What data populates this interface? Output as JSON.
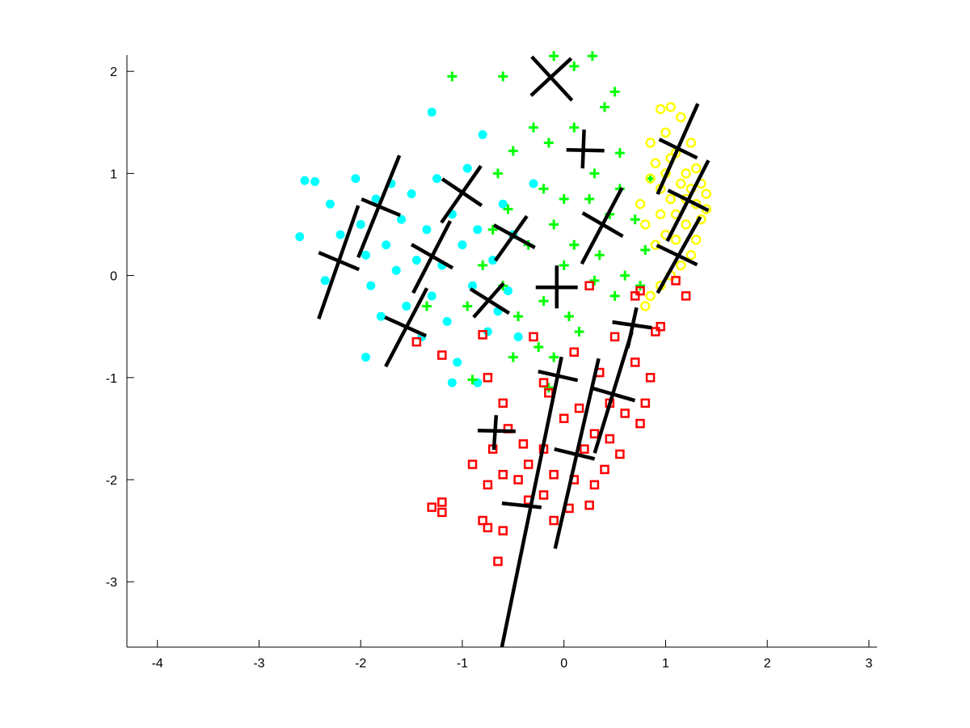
{
  "chart_data": {
    "type": "scatter",
    "xlim": [
      -4.3,
      3.08
    ],
    "ylim": [
      -3.64,
      2.16
    ],
    "xticks": [
      -4,
      -3,
      -2,
      -1,
      0,
      1,
      2,
      3
    ],
    "yticks": [
      -3,
      -2,
      -1,
      0,
      1,
      2
    ],
    "series": [
      {
        "color": "#00ffff",
        "marker": "filled-circle",
        "x": [
          -2.6,
          -2.55,
          -2.45,
          -2.3,
          -2.2,
          -2.05,
          -2.0,
          -1.95,
          -1.9,
          -1.85,
          -1.8,
          -1.75,
          -1.7,
          -1.65,
          -1.6,
          -1.55,
          -1.5,
          -1.45,
          -1.4,
          -1.35,
          -1.3,
          -1.3,
          -1.25,
          -1.2,
          -1.15,
          -1.1,
          -1.05,
          -1.0,
          -0.95,
          -0.9,
          -0.85,
          -0.8,
          -0.75,
          -0.7,
          -0.65,
          -0.6,
          -0.55,
          -0.5,
          -0.45,
          -0.3,
          -1.95,
          -2.35,
          -1.1,
          -0.85
        ],
        "y": [
          0.38,
          0.93,
          0.92,
          0.7,
          0.4,
          0.95,
          0.5,
          0.2,
          -0.1,
          0.75,
          -0.4,
          0.3,
          0.9,
          0.05,
          0.55,
          -0.3,
          0.8,
          0.15,
          -0.6,
          0.45,
          -0.2,
          1.6,
          0.95,
          0.1,
          -0.45,
          0.6,
          -0.85,
          0.3,
          1.05,
          -0.1,
          0.45,
          1.38,
          -0.55,
          0.15,
          -0.35,
          0.7,
          -0.15,
          0.4,
          -0.6,
          0.9,
          -0.8,
          -0.05,
          -1.05,
          -1.05
        ]
      },
      {
        "color": "#00ff00",
        "marker": "plus",
        "x": [
          -1.1,
          -0.6,
          -0.65,
          -0.5,
          -0.3,
          -0.1,
          0.1,
          0.28,
          0.4,
          0.5,
          -0.15,
          0.1,
          0.3,
          0.55,
          0.55,
          -0.2,
          0.0,
          0.25,
          0.45,
          -0.55,
          -0.35,
          -0.1,
          0.1,
          0.35,
          0.6,
          0.75,
          0.8,
          -0.8,
          -0.6,
          -0.45,
          -0.2,
          0.05,
          0.3,
          0.5,
          -0.25,
          -0.5,
          -0.1,
          0.15,
          -0.9,
          -0.15,
          -0.95,
          0.0,
          -1.35,
          -0.7,
          0.85,
          0.7
        ],
        "y": [
          1.95,
          1.95,
          1.0,
          1.22,
          1.45,
          2.15,
          2.05,
          2.15,
          1.65,
          1.8,
          1.3,
          1.45,
          1.0,
          1.2,
          0.85,
          0.85,
          0.75,
          0.75,
          0.6,
          0.65,
          0.3,
          0.5,
          0.3,
          0.2,
          0.0,
          -0.1,
          0.25,
          0.1,
          -0.1,
          -0.4,
          -0.25,
          -0.4,
          -0.05,
          -0.2,
          -0.7,
          -0.8,
          -0.8,
          -0.55,
          -1.02,
          -1.1,
          -0.3,
          0.1,
          -0.3,
          0.45,
          0.95,
          0.55
        ]
      },
      {
        "color": "#ffff00",
        "marker": "circle",
        "x": [
          0.85,
          0.95,
          1.05,
          1.15,
          0.9,
          1.0,
          1.1,
          1.2,
          1.25,
          1.3,
          1.35,
          1.4,
          1.15,
          1.05,
          0.95,
          0.85,
          0.8,
          0.9,
          1.0,
          1.1,
          1.2,
          1.3,
          1.25,
          1.15,
          1.05,
          0.95,
          0.85,
          1.2,
          1.3,
          1.0,
          1.35,
          1.1,
          0.95,
          0.75,
          1.25,
          1.4,
          0.8,
          1.05
        ],
        "y": [
          1.3,
          1.63,
          1.65,
          1.55,
          1.1,
          1.4,
          1.2,
          1.0,
          0.85,
          0.7,
          0.55,
          0.8,
          0.9,
          0.75,
          0.6,
          0.95,
          0.5,
          0.3,
          0.4,
          0.6,
          0.5,
          0.35,
          0.2,
          0.1,
          0.0,
          -0.1,
          -0.2,
          0.75,
          1.05,
          1.0,
          0.9,
          0.35,
          0.85,
          0.7,
          1.3,
          0.65,
          -0.3,
          1.15
        ]
      },
      {
        "color": "#ff0000",
        "marker": "square",
        "x": [
          -1.45,
          -1.2,
          -0.8,
          -0.75,
          -0.6,
          -0.55,
          -0.7,
          -0.9,
          -0.75,
          -0.6,
          -1.2,
          -1.3,
          -1.2,
          -0.8,
          -0.75,
          -0.6,
          -0.65,
          -0.45,
          -0.35,
          -0.2,
          -0.1,
          -0.35,
          -0.2,
          0.0,
          0.15,
          0.3,
          0.45,
          0.6,
          0.75,
          0.2,
          0.1,
          0.3,
          0.4,
          0.55,
          -0.1,
          0.05,
          -0.3,
          -0.2,
          0.1,
          0.35,
          0.5,
          0.7,
          0.9,
          0.95,
          0.75,
          0.7,
          1.1,
          1.2,
          0.25,
          0.85,
          0.8,
          0.45,
          -0.15,
          -0.4,
          0.25
        ],
        "y": [
          -0.65,
          -0.78,
          -0.58,
          -1.0,
          -1.25,
          -1.5,
          -1.7,
          -1.85,
          -2.05,
          -1.95,
          -2.22,
          -2.27,
          -2.32,
          -2.4,
          -2.47,
          -2.5,
          -2.8,
          -2.0,
          -2.2,
          -2.15,
          -1.95,
          -1.85,
          -1.7,
          -1.4,
          -1.3,
          -1.55,
          -1.6,
          -1.35,
          -1.45,
          -1.7,
          -2.0,
          -2.05,
          -1.9,
          -1.75,
          -2.4,
          -2.28,
          -0.6,
          -1.05,
          -0.75,
          -0.95,
          -0.6,
          -0.85,
          -0.55,
          -0.5,
          -0.15,
          -0.2,
          -0.05,
          -0.2,
          -0.1,
          -1.0,
          -1.25,
          -1.25,
          -1.15,
          -1.65,
          -2.25
        ]
      }
    ],
    "segments": [
      {
        "x": [
          -0.317,
          0.079
        ],
        "y": [
          2.143,
          1.715
        ]
      },
      {
        "x": [
          0.071,
          -0.325
        ],
        "y": [
          2.127,
          1.762
        ]
      },
      {
        "x": [
          0.024,
          0.397
        ],
        "y": [
          1.231,
          1.223
        ]
      },
      {
        "x": [
          0.198,
          0.183
        ],
        "y": [
          1.429,
          1.049
        ]
      },
      {
        "x": [
          1.317,
          0.921
        ],
        "y": [
          1.683,
          0.796
        ]
      },
      {
        "x": [
          0.937,
          1.31
        ],
        "y": [
          1.334,
          1.152
        ]
      },
      {
        "x": [
          1.421,
          1.016
        ],
        "y": [
          1.128,
          0.336
        ]
      },
      {
        "x": [
          1.024,
          1.421
        ],
        "y": [
          0.835,
          0.637
        ]
      },
      {
        "x": [
          1.341,
          0.921
        ],
        "y": [
          0.574,
          -0.171
        ]
      },
      {
        "x": [
          0.913,
          1.31
        ],
        "y": [
          0.296,
          0.106
        ]
      },
      {
        "x": [
          -1.619,
          -2.024
        ],
        "y": [
          1.176,
          0.177
        ]
      },
      {
        "x": [
          -1.992,
          -1.611
        ],
        "y": [
          0.748,
          0.59
        ]
      },
      {
        "x": [
          -2.024,
          -2.413
        ],
        "y": [
          0.685,
          -0.425
        ]
      },
      {
        "x": [
          -2.413,
          -2.016
        ],
        "y": [
          0.225,
          0.059
        ]
      },
      {
        "x": [
          -0.817,
          -1.206
        ],
        "y": [
          1.073,
          0.518
        ]
      },
      {
        "x": [
          -1.198,
          -0.81
        ],
        "y": [
          0.946,
          0.685
        ]
      },
      {
        "x": [
          -1.119,
          -1.484
        ],
        "y": [
          0.534,
          -0.171
        ]
      },
      {
        "x": [
          -1.5,
          -1.095
        ],
        "y": [
          0.304,
          0.074
        ]
      },
      {
        "x": [
          -1.349,
          -1.754
        ],
        "y": [
          -0.124,
          -0.892
        ]
      },
      {
        "x": [
          -1.762,
          -1.357
        ],
        "y": [
          -0.409,
          -0.591
        ]
      },
      {
        "x": [
          -0.365,
          -0.675
        ],
        "y": [
          0.582,
          0.146
        ]
      },
      {
        "x": [
          -0.69,
          -0.286
        ],
        "y": [
          0.494,
          0.273
        ]
      },
      {
        "x": [
          -0.595,
          -0.889
        ],
        "y": [
          -0.076,
          -0.409
        ]
      },
      {
        "x": [
          -0.921,
          -0.54
        ],
        "y": [
          -0.131,
          -0.369
        ]
      },
      {
        "x": [
          0.571,
          0.175
        ],
        "y": [
          0.859,
          0.114
        ]
      },
      {
        "x": [
          0.183,
          0.579
        ],
        "y": [
          0.613,
          0.384
        ]
      },
      {
        "x": [
          -0.278,
          0.135
        ],
        "y": [
          -0.116,
          -0.116
        ]
      },
      {
        "x": [
          -0.071,
          -0.071
        ],
        "y": [
          0.098,
          -0.322
        ]
      },
      {
        "x": [
          0.476,
          0.865
        ],
        "y": [
          -0.456,
          -0.512
        ]
      },
      {
        "x": [
          0.714,
          0.627
        ],
        "y": [
          -0.314,
          -0.71
        ]
      },
      {
        "x": [
          -0.024,
          -0.611
        ],
        "y": [
          -0.797,
          -3.64
        ]
      },
      {
        "x": [
          -0.254,
          0.135
        ],
        "y": [
          -0.94,
          -1.027
        ]
      },
      {
        "x": [
          0.341,
          -0.087
        ],
        "y": [
          -0.813,
          -2.675
        ]
      },
      {
        "x": [
          0.286,
          0.698
        ],
        "y": [
          -1.106,
          -1.225
        ]
      },
      {
        "x": [
          0.667,
          0.302
        ],
        "y": [
          -0.552,
          -1.74
        ]
      },
      {
        "x": [
          -0.095,
          0.302
        ],
        "y": [
          -1.7,
          -1.796
        ]
      },
      {
        "x": [
          -0.849,
          -0.476
        ],
        "y": [
          -1.518,
          -1.526
        ]
      },
      {
        "x": [
          -0.667,
          -0.69
        ],
        "y": [
          -1.368,
          -1.708
        ]
      },
      {
        "x": [
          -0.611,
          -0.222
        ],
        "y": [
          -2.231,
          -2.271
        ]
      }
    ],
    "segment_color": "#000000"
  }
}
